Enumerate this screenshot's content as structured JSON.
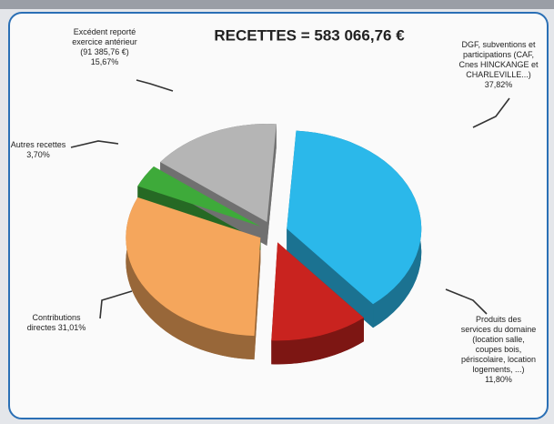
{
  "chart_data": {
    "type": "pie",
    "title": "RECETTES = 583 066,76 €",
    "categories": [
      [
        "DGF, subventions et",
        "participations (CAF,",
        "Cnes HINCKANGE et",
        "CHARLEVILLE...)"
      ],
      [
        "Produits des",
        "services du domaine",
        "(location salle,",
        "coupes bois,",
        "périscolaire, location",
        "logements, ...)"
      ],
      [
        "Contributions",
        "directes"
      ],
      [
        "Autres recettes"
      ],
      [
        "Excédent reporté",
        "exercice antérieur",
        "(91 385,76 €)"
      ]
    ],
    "values": [
      37.82,
      11.8,
      31.01,
      3.7,
      15.67
    ],
    "value_labels": [
      "37,82%",
      "11,80%",
      "31,01%",
      "3,70%",
      "15,67%"
    ],
    "colors": [
      "#2bb8ea",
      "#c9231f",
      "#f5a65c",
      "#3eaa3a",
      "#b5b5b5"
    ]
  }
}
